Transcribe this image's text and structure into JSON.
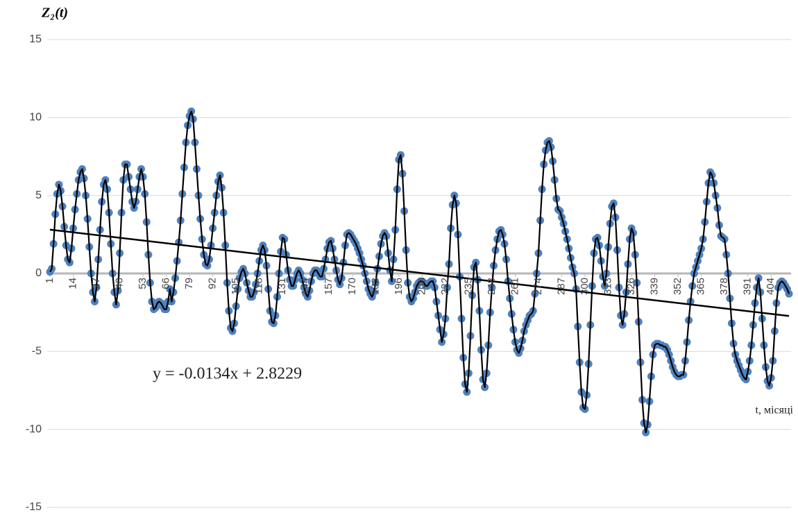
{
  "chart_data": {
    "type": "line",
    "y_label": "Z₂(t)",
    "x_label": "t, місяці",
    "trendline": {
      "slope": -0.0134,
      "intercept": 2.8229,
      "label": "y = -0.0134x + 2.8229",
      "color": "#000000"
    },
    "xlim": [
      1,
      414
    ],
    "xticks": [
      1,
      14,
      27,
      40,
      53,
      66,
      79,
      92,
      105,
      118,
      131,
      144,
      157,
      170,
      183,
      196,
      209,
      222,
      235,
      248,
      261,
      274,
      287,
      300,
      313,
      326,
      339,
      352,
      365,
      378,
      391,
      404
    ],
    "ylim": [
      -15,
      15
    ],
    "yticks": [
      15,
      10,
      5,
      0,
      -5,
      -10,
      -15
    ],
    "grid": true,
    "x": [
      1,
      2,
      3,
      4,
      5,
      6,
      7,
      8,
      9,
      10,
      11,
      12,
      13,
      14,
      15,
      16,
      17,
      18,
      19,
      20,
      21,
      22,
      23,
      24,
      25,
      26,
      27,
      28,
      29,
      30,
      31,
      32,
      33,
      34,
      35,
      36,
      37,
      38,
      39,
      40,
      41,
      42,
      43,
      44,
      45,
      46,
      47,
      48,
      49,
      50,
      51,
      52,
      53,
      54,
      55,
      56,
      57,
      58,
      59,
      60,
      61,
      62,
      63,
      64,
      65,
      66,
      67,
      68,
      69,
      70,
      71,
      72,
      73,
      74,
      75,
      76,
      77,
      78,
      79,
      80,
      81,
      82,
      83,
      84,
      85,
      86,
      87,
      88,
      89,
      90,
      91,
      92,
      93,
      94,
      95,
      96,
      97,
      98,
      99,
      100,
      101,
      102,
      103,
      104,
      105,
      106,
      107,
      108,
      109,
      110,
      111,
      112,
      113,
      114,
      115,
      116,
      117,
      118,
      119,
      120,
      121,
      122,
      123,
      124,
      125,
      126,
      127,
      128,
      129,
      130,
      131,
      132,
      133,
      134,
      135,
      136,
      137,
      138,
      139,
      140,
      141,
      142,
      143,
      144,
      145,
      146,
      147,
      148,
      149,
      150,
      151,
      152,
      153,
      154,
      155,
      156,
      157,
      158,
      159,
      160,
      161,
      162,
      163,
      164,
      165,
      166,
      167,
      168,
      169,
      170,
      171,
      172,
      173,
      174,
      175,
      176,
      177,
      178,
      179,
      180,
      181,
      182,
      183,
      184,
      185,
      186,
      187,
      188,
      189,
      190,
      191,
      192,
      193,
      194,
      195,
      196,
      197,
      198,
      199,
      200,
      201,
      202,
      203,
      204,
      205,
      206,
      207,
      208,
      209,
      210,
      211,
      212,
      213,
      214,
      215,
      216,
      217,
      218,
      219,
      220,
      221,
      222,
      223,
      224,
      225,
      226,
      227,
      228,
      229,
      230,
      231,
      232,
      233,
      234,
      235,
      236,
      237,
      238,
      239,
      240,
      241,
      242,
      243,
      244,
      245,
      246,
      247,
      248,
      249,
      250,
      251,
      252,
      253,
      254,
      255,
      256,
      257,
      258,
      259,
      260,
      261,
      262,
      263,
      264,
      265,
      266,
      267,
      268,
      269,
      270,
      271,
      272,
      273,
      274,
      275,
      276,
      277,
      278,
      279,
      280,
      281,
      282,
      283,
      284,
      285,
      286,
      287,
      288,
      289,
      290,
      291,
      292,
      293,
      294,
      295,
      296,
      297,
      298,
      299,
      300,
      301,
      302,
      303,
      304,
      305,
      306,
      307,
      308,
      309,
      310,
      311,
      312,
      313,
      314,
      315,
      316,
      317,
      318,
      319,
      320,
      321,
      322,
      323,
      324,
      325,
      326,
      327,
      328,
      329,
      330,
      331,
      332,
      333,
      334,
      335,
      336,
      337,
      338,
      339,
      340,
      341,
      342,
      343,
      344,
      345,
      346,
      347,
      348,
      349,
      350,
      351,
      352,
      353,
      354,
      355,
      356,
      357,
      358,
      359,
      360,
      361,
      362,
      363,
      364,
      365,
      366,
      367,
      368,
      369,
      370,
      371,
      372,
      373,
      374,
      375,
      376,
      377,
      378,
      379,
      380,
      381,
      382,
      383,
      384,
      385,
      386,
      387,
      388,
      389,
      390,
      391,
      392,
      393,
      394,
      395,
      396,
      397,
      398,
      399,
      400,
      401,
      402,
      403,
      404,
      405,
      406,
      407,
      408,
      409,
      410,
      411,
      412,
      413,
      414
    ],
    "series": [
      {
        "name": "Z2",
        "color": "#4f81bd",
        "line_color": "#000000",
        "values": [
          0.1,
          0.3,
          1.9,
          3.8,
          5.1,
          5.7,
          5.3,
          4.3,
          3.0,
          1.8,
          0.9,
          0.7,
          1.6,
          2.9,
          4.1,
          5.1,
          6.0,
          6.5,
          6.7,
          6.1,
          5.0,
          3.5,
          1.7,
          0.0,
          -1.2,
          -1.8,
          -0.9,
          0.9,
          2.8,
          4.6,
          5.7,
          6.0,
          5.4,
          3.9,
          1.9,
          0.0,
          -1.2,
          -2.0,
          -1.1,
          1.3,
          3.9,
          6.0,
          7.0,
          7.0,
          6.2,
          5.4,
          4.6,
          4.2,
          4.6,
          5.4,
          6.2,
          6.7,
          6.2,
          5.1,
          3.3,
          1.2,
          -0.6,
          -1.8,
          -2.3,
          -2.2,
          -1.9,
          -1.8,
          -1.9,
          -2.1,
          -2.3,
          -2.3,
          -1.8,
          -1.0,
          -1.8,
          -1.2,
          -0.3,
          0.8,
          2.0,
          3.4,
          5.1,
          6.8,
          8.4,
          9.5,
          10.1,
          10.4,
          9.9,
          8.4,
          6.7,
          5.0,
          3.5,
          2.2,
          1.2,
          0.6,
          0.5,
          0.9,
          1.8,
          2.9,
          3.9,
          5.0,
          5.9,
          6.3,
          5.5,
          3.9,
          1.8,
          -0.6,
          -2.4,
          -3.5,
          -3.7,
          -3.2,
          -2.1,
          -1.0,
          -0.3,
          0.1,
          0.3,
          0.0,
          -0.6,
          -1.1,
          -1.5,
          -1.5,
          -1.2,
          -0.7,
          0.0,
          0.8,
          1.5,
          1.8,
          1.5,
          0.5,
          -1.0,
          -2.4,
          -3.1,
          -3.2,
          -2.7,
          -1.5,
          0.0,
          1.4,
          2.3,
          2.2,
          1.2,
          0.2,
          -0.4,
          -0.8,
          -0.8,
          -0.4,
          0.0,
          0.2,
          0.0,
          -0.4,
          -0.9,
          -1.3,
          -1.5,
          -1.1,
          -0.5,
          0.0,
          0.2,
          0.2,
          0.0,
          -0.2,
          -0.2,
          0.3,
          0.9,
          1.6,
          2.0,
          2.1,
          1.6,
          0.9,
          0.2,
          -0.4,
          -0.7,
          -0.3,
          0.7,
          1.8,
          2.5,
          2.6,
          2.5,
          2.3,
          2.1,
          1.9,
          1.6,
          1.3,
          0.9,
          0.5,
          0.0,
          -0.5,
          -1.0,
          -1.3,
          -1.5,
          -1.2,
          -0.6,
          0.3,
          1.1,
          1.9,
          2.4,
          2.6,
          2.4,
          1.3,
          0.2,
          -0.5,
          0.9,
          2.8,
          5.4,
          7.3,
          7.6,
          6.4,
          4.0,
          1.5,
          -0.6,
          -1.5,
          -1.8,
          -1.6,
          -1.2,
          -0.8,
          -0.6,
          -0.5,
          -0.5,
          -0.6,
          -0.8,
          -0.8,
          -0.6,
          -0.5,
          -0.5,
          -0.9,
          -1.8,
          -2.7,
          -3.6,
          -4.4,
          -3.9,
          -2.9,
          -0.9,
          0.6,
          2.9,
          4.4,
          5.0,
          4.5,
          2.5,
          -0.2,
          -2.9,
          -5.4,
          -7.1,
          -7.6,
          -6.4,
          -4.0,
          -1.4,
          0.4,
          0.7,
          -0.4,
          -2.4,
          -4.9,
          -6.8,
          -7.3,
          -6.4,
          -4.6,
          -2.5,
          -0.9,
          0.5,
          1.5,
          2.2,
          2.7,
          2.8,
          2.5,
          1.9,
          0.9,
          -0.5,
          -1.6,
          -2.6,
          -3.6,
          -4.4,
          -4.9,
          -5.1,
          -4.8,
          -4.3,
          -3.7,
          -3.3,
          -3.0,
          -2.7,
          -2.6,
          -2.4,
          -1.3,
          0.0,
          1.3,
          3.4,
          5.4,
          7.0,
          7.9,
          8.4,
          8.5,
          8.1,
          7.2,
          6.0,
          4.8,
          4.1,
          4.0,
          3.6,
          3.2,
          2.7,
          2.2,
          1.6,
          1.0,
          0.4,
          0.0,
          -1.0,
          -3.4,
          -5.7,
          -7.6,
          -8.6,
          -8.7,
          -7.8,
          -5.8,
          -3.3,
          -0.8,
          1.3,
          2.2,
          2.3,
          1.8,
          0.8,
          -0.2,
          -0.8,
          0.0,
          1.7,
          3.2,
          4.3,
          4.5,
          3.6,
          1.5,
          -0.9,
          -2.7,
          -3.3,
          -2.6,
          -1.2,
          0.6,
          2.2,
          2.9,
          2.6,
          1.2,
          -0.6,
          -3.1,
          -5.7,
          -8.1,
          -9.6,
          -10.2,
          -9.7,
          -8.2,
          -6.6,
          -5.2,
          -4.6,
          -4.5,
          -4.5,
          -4.6,
          -4.6,
          -4.7,
          -4.7,
          -4.9,
          -5.2,
          -5.6,
          -6.0,
          -6.3,
          -6.5,
          -6.6,
          -6.6,
          -6.5,
          -6.5,
          -5.6,
          -4.4,
          -3.0,
          -1.8,
          -0.8,
          0.0,
          0.4,
          0.8,
          1.2,
          1.6,
          2.2,
          3.3,
          4.6,
          5.8,
          6.5,
          6.3,
          5.8,
          5.0,
          4.2,
          3.1,
          2.4,
          2.3,
          2.2,
          1.2,
          0.0,
          -1.6,
          -3.2,
          -4.5,
          -5.2,
          -5.6,
          -5.9,
          -6.2,
          -6.5,
          -6.7,
          -6.8,
          -6.3,
          -5.6,
          -4.6,
          -3.3,
          -1.9,
          -0.9,
          -0.3,
          -1.2,
          -2.9,
          -4.6,
          -6.0,
          -6.9,
          -7.2,
          -6.7,
          -5.6,
          -3.7,
          -1.9,
          -0.9,
          -0.6,
          -0.5,
          -0.6,
          -0.8,
          -1.0,
          -1.3
        ]
      }
    ]
  }
}
